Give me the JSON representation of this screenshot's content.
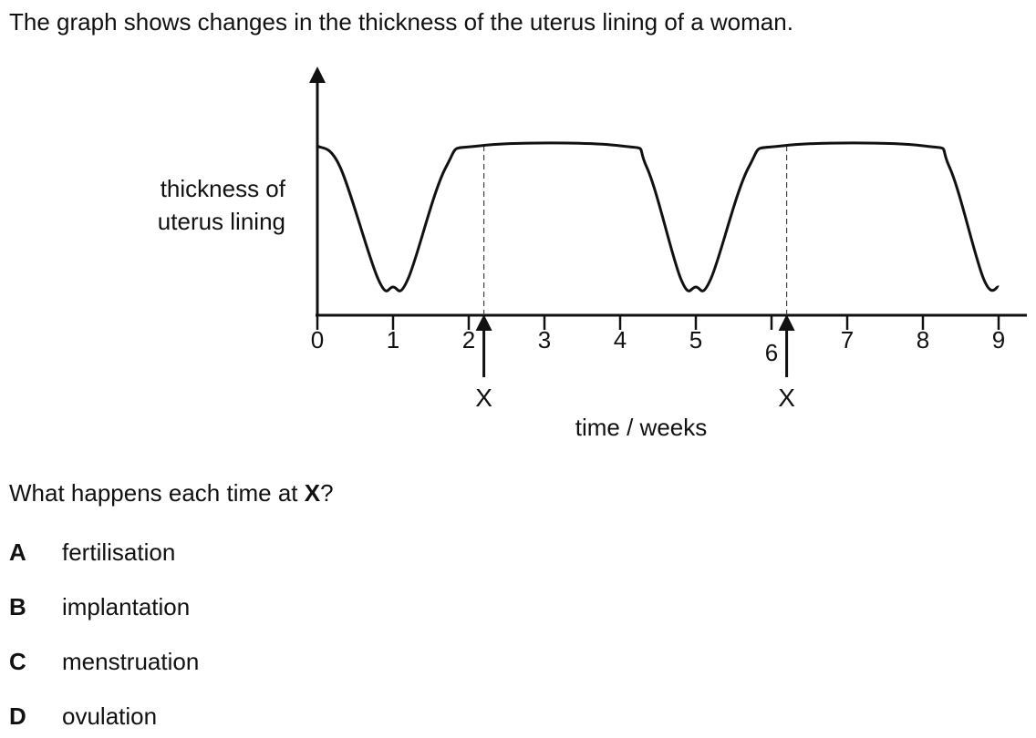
{
  "intro_text": "The graph shows changes in the thickness of the uterus lining of a woman.",
  "chart_data": {
    "type": "line",
    "ylabel_lines": [
      "thickness of",
      "uterus lining"
    ],
    "xlabel": "time / weeks",
    "x_ticks": [
      "0",
      "1",
      "2",
      "3",
      "4",
      "5",
      "6",
      "7",
      "8",
      "9"
    ],
    "xlim": [
      0,
      9
    ],
    "y_axis_ticks": false,
    "grid": false,
    "series": [
      {
        "x": [
          0,
          0.3,
          0.8,
          1.0,
          1.2,
          1.7,
          2.15,
          4.0,
          4.35,
          4.8,
          5.0,
          5.2,
          5.7,
          6.15,
          8.0,
          8.35,
          8.8,
          9.0
        ],
        "y": [
          1.0,
          0.85,
          0.06,
          0.0,
          0.06,
          0.85,
          1.0,
          1.0,
          0.85,
          0.06,
          0.0,
          0.06,
          0.85,
          1.0,
          1.0,
          0.85,
          0.06,
          0.0
        ]
      }
    ],
    "annotations": [
      {
        "label": "X",
        "x": 2.2
      },
      {
        "label": "X",
        "x": 6.2
      }
    ]
  },
  "question": {
    "text": "What happens each time at ",
    "bold": "X",
    "end": "?"
  },
  "options": [
    {
      "letter": "A",
      "text": "fertilisation"
    },
    {
      "letter": "B",
      "text": "implantation"
    },
    {
      "letter": "C",
      "text": "menstruation"
    },
    {
      "letter": "D",
      "text": "ovulation"
    }
  ]
}
